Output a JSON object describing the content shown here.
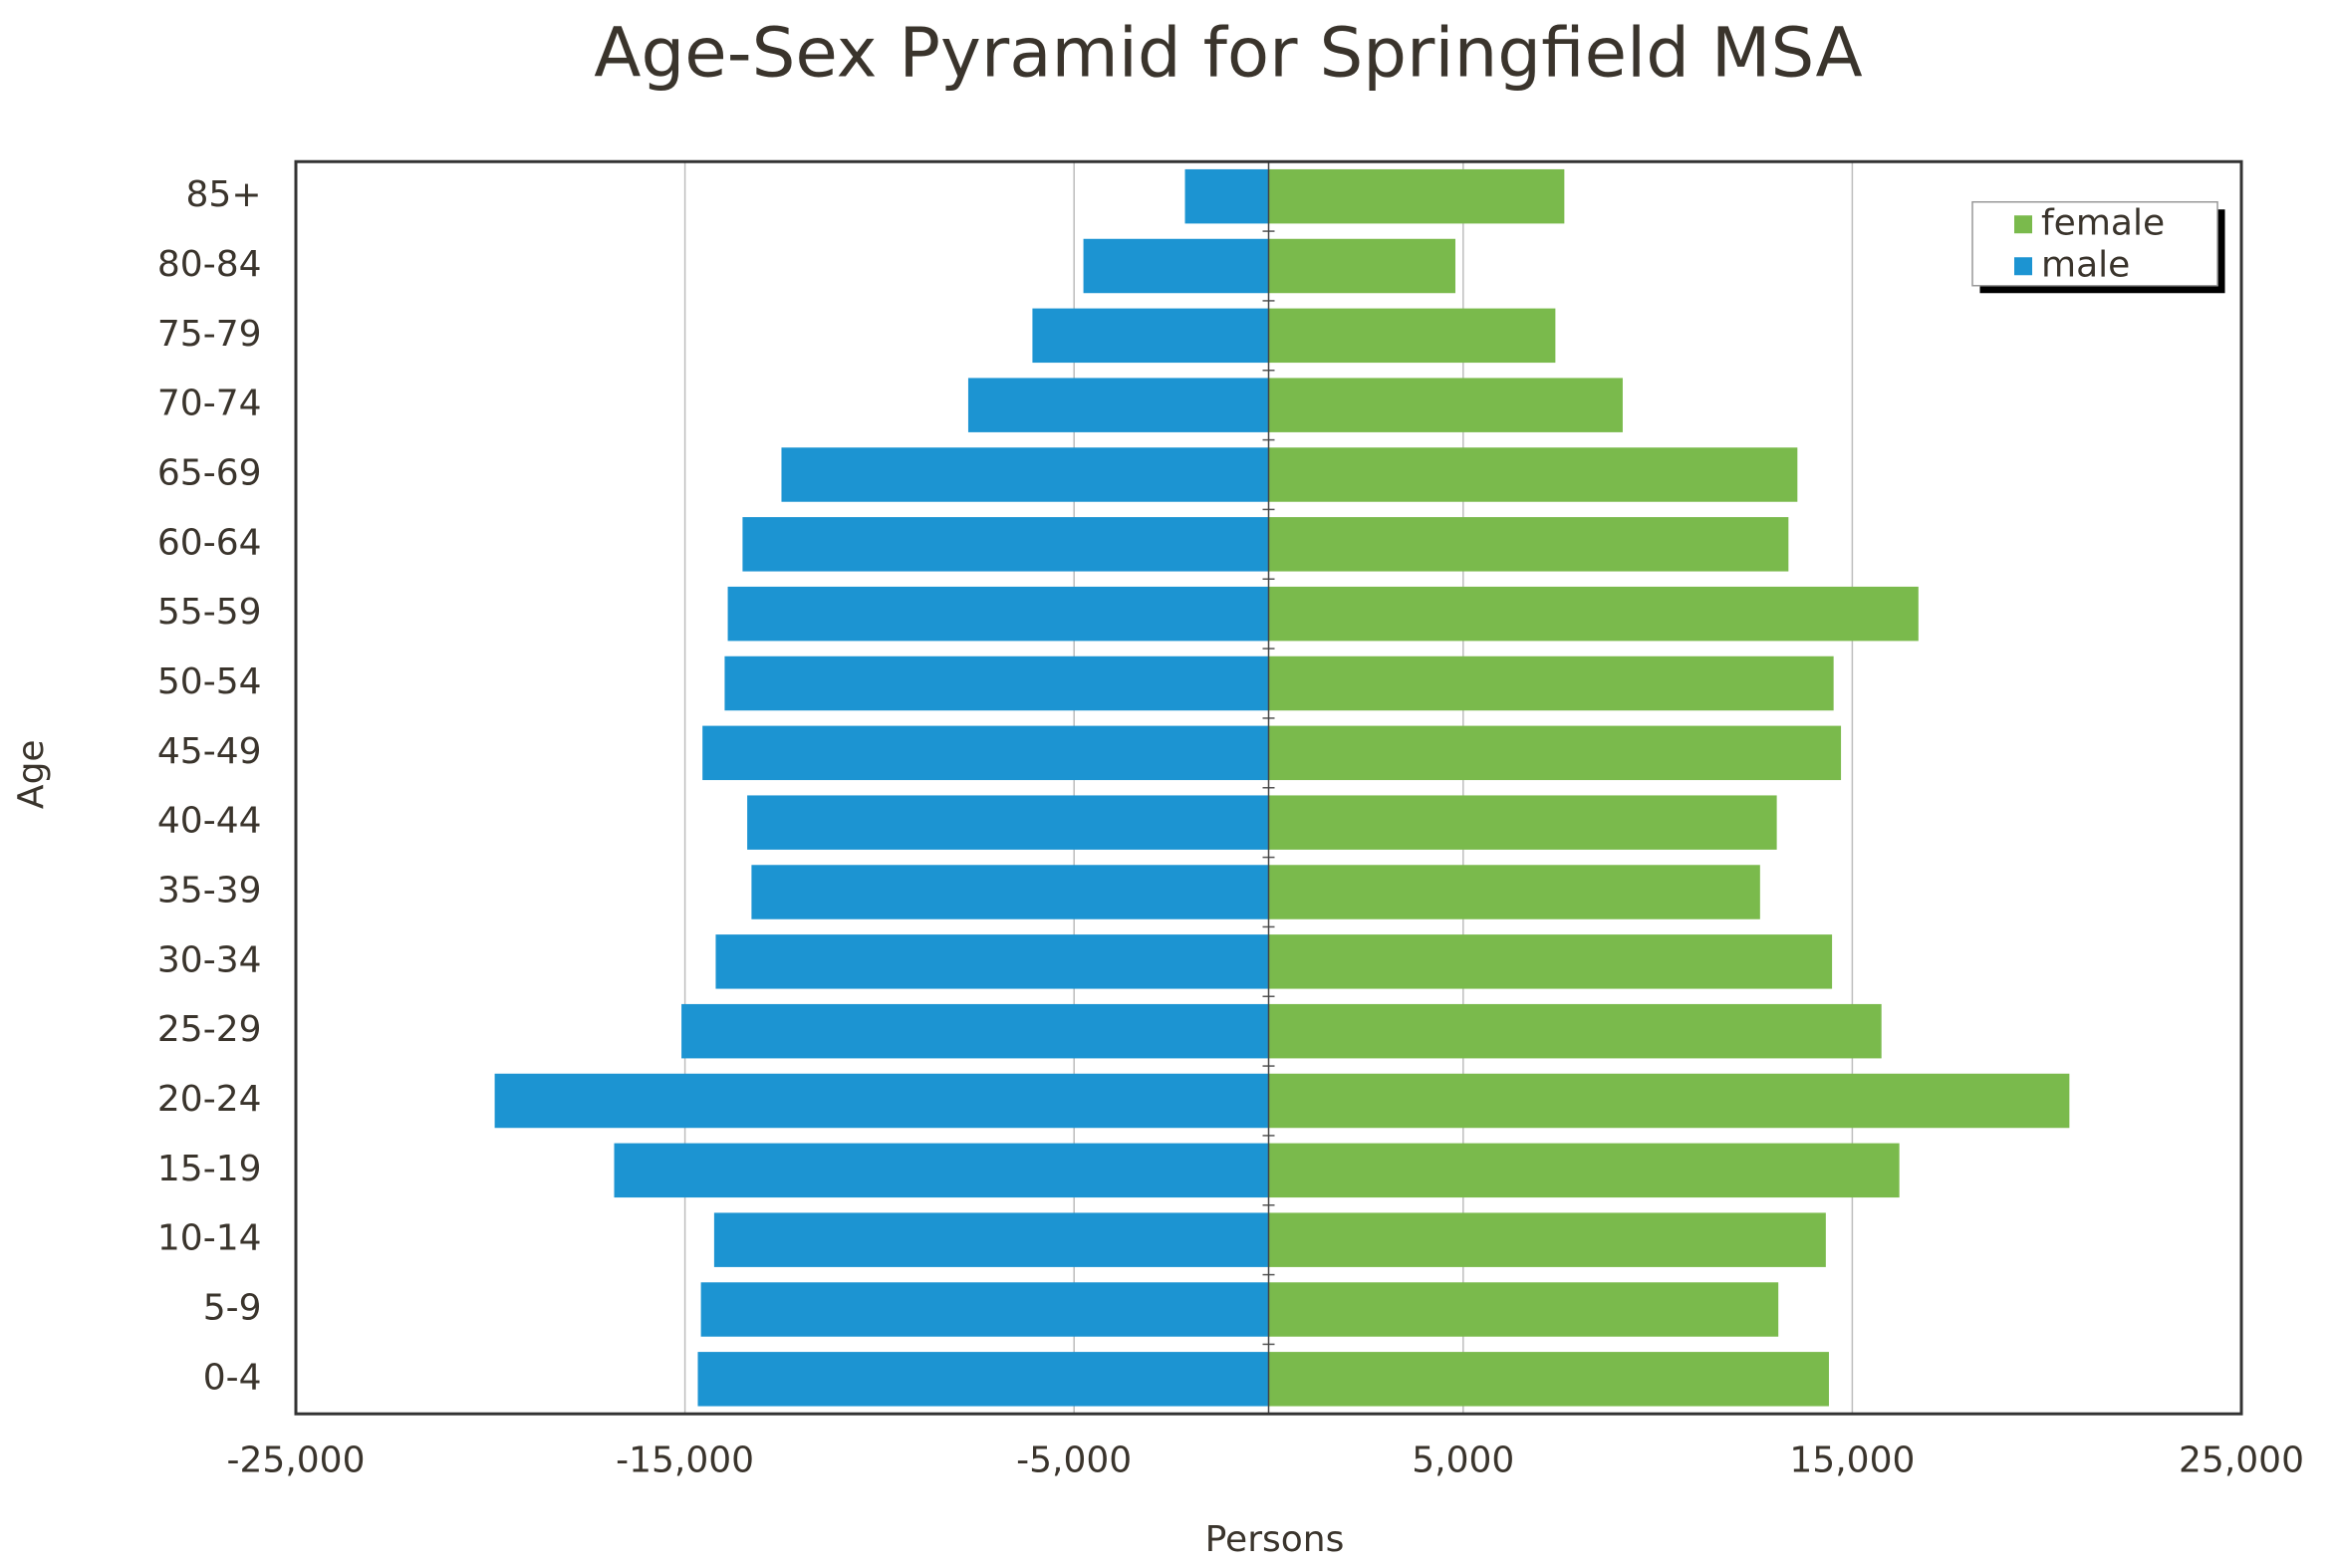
{
  "chart_data": {
    "type": "pyramid",
    "title": "Age-Sex Pyramid for Springfield MSA",
    "x_label": "Persons",
    "y_label": "Age",
    "categories": [
      "0-4",
      "5-9",
      "10-14",
      "15-19",
      "20-24",
      "25-29",
      "30-34",
      "35-39",
      "40-44",
      "45-49",
      "50-54",
      "55-59",
      "60-64",
      "65-69",
      "70-74",
      "75-79",
      "80-84",
      "85+"
    ],
    "series": [
      {
        "name": "female",
        "color": "#7aba4c",
        "values": [
          14400,
          13100,
          14320,
          16210,
          20580,
          15750,
          14480,
          12630,
          13060,
          14710,
          14520,
          16700,
          13360,
          13590,
          9100,
          7370,
          4800,
          7600
        ]
      },
      {
        "name": "male",
        "color": "#1c94d2",
        "values": [
          -14670,
          -14590,
          -14250,
          -16820,
          -19890,
          -15090,
          -14210,
          -13290,
          -13400,
          -14550,
          -13980,
          -13900,
          -13520,
          -12520,
          -7720,
          -6070,
          -4760,
          -2150
        ]
      }
    ],
    "xlim": [
      -25000,
      25000
    ],
    "xticks": [
      {
        "value": -25000,
        "label": "-25,000"
      },
      {
        "value": -15000,
        "label": "-15,000"
      },
      {
        "value": -5000,
        "label": "-5,000"
      },
      {
        "value": 5000,
        "label": "5,000"
      },
      {
        "value": 15000,
        "label": "15,000"
      },
      {
        "value": 25000,
        "label": "25,000"
      }
    ],
    "grid": true,
    "legend": "top-right"
  }
}
